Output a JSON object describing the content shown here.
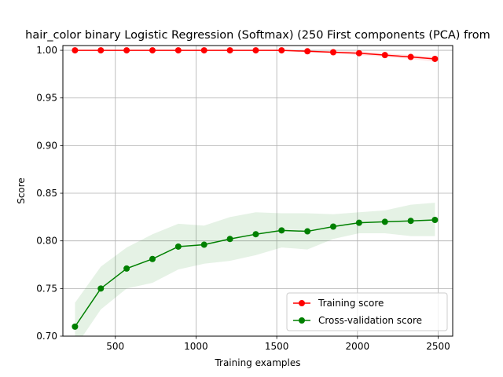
{
  "chart_data": {
    "type": "line",
    "title": "hair_color binary Logistic Regression (Softmax) (250 First components (PCA) from",
    "xlabel": "Training examples",
    "ylabel": "Score",
    "xlim": [
      175,
      2590
    ],
    "ylim": [
      0.7,
      1.005
    ],
    "xticks": [
      500,
      1000,
      1500,
      2000,
      2500
    ],
    "xtick_labels": [
      "500",
      "1000",
      "1500",
      "2000",
      "2500"
    ],
    "yticks": [
      0.7,
      0.75,
      0.8,
      0.85,
      0.9,
      0.95,
      1.0
    ],
    "ytick_labels": [
      "0.70",
      "0.75",
      "0.80",
      "0.85",
      "0.90",
      "0.95",
      "1.00"
    ],
    "grid": true,
    "legend_position": "lower-right",
    "x": [
      250,
      410,
      570,
      730,
      890,
      1050,
      1210,
      1370,
      1530,
      1690,
      1850,
      2010,
      2170,
      2330,
      2480
    ],
    "series": [
      {
        "name": "Training score",
        "color": "#ff0000",
        "values": [
          1.0,
          1.0,
          1.0,
          1.0,
          1.0,
          1.0,
          1.0,
          1.0,
          1.0,
          0.999,
          0.998,
          0.997,
          0.995,
          0.993,
          0.991
        ],
        "band_upper": [
          1.0,
          1.0,
          1.0,
          1.0,
          1.0,
          1.0,
          1.0,
          1.0,
          1.0,
          1.0,
          0.999,
          0.999,
          0.997,
          0.995,
          0.993
        ],
        "band_lower": [
          1.0,
          1.0,
          1.0,
          1.0,
          1.0,
          1.0,
          1.0,
          1.0,
          0.999,
          0.998,
          0.997,
          0.995,
          0.993,
          0.991,
          0.988
        ]
      },
      {
        "name": "Cross-validation score",
        "color": "#008000",
        "values": [
          0.71,
          0.75,
          0.771,
          0.781,
          0.794,
          0.796,
          0.802,
          0.807,
          0.811,
          0.81,
          0.815,
          0.819,
          0.82,
          0.821,
          0.822
        ],
        "band_upper": [
          0.735,
          0.773,
          0.793,
          0.807,
          0.818,
          0.816,
          0.825,
          0.83,
          0.829,
          0.829,
          0.828,
          0.83,
          0.832,
          0.838,
          0.84
        ],
        "band_lower": [
          0.688,
          0.728,
          0.75,
          0.756,
          0.77,
          0.776,
          0.779,
          0.785,
          0.793,
          0.791,
          0.802,
          0.808,
          0.808,
          0.805,
          0.805
        ]
      }
    ]
  }
}
